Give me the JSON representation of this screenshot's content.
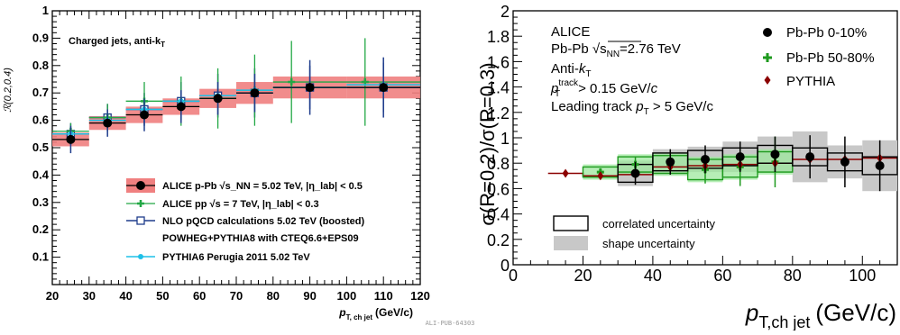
{
  "footer_id": "ALI-PUB-64303",
  "chart_data": [
    {
      "type": "scatter",
      "title": "",
      "annotation": "Charged jets, anti-k",
      "annotation_sub": "T",
      "ylabel": "ℛ(0.2,0.4)",
      "xlabel_main": "p",
      "xlabel_sub": "T, ch jet",
      "xlabel_unit": "(GeV/c)",
      "xlim": [
        20,
        120
      ],
      "ylim": [
        0,
        1
      ],
      "xticks": [
        20,
        30,
        40,
        50,
        60,
        70,
        80,
        90,
        100,
        110,
        120
      ],
      "yticks": [
        0.1,
        0.2,
        0.3,
        0.4,
        0.5,
        0.6,
        0.7,
        0.8,
        0.9,
        1
      ],
      "legend_position": "lower-right",
      "series": [
        {
          "name": "ALICE p-Pb √s_NN = 5.02 TeV, |η_lab| < 0.5",
          "color": "#000000",
          "band_color": "#f08080",
          "x": [
            25,
            35,
            45,
            55,
            65,
            75,
            90,
            110
          ],
          "xerr": [
            5,
            5,
            5,
            5,
            5,
            5,
            10,
            10
          ],
          "y": [
            0.53,
            0.59,
            0.62,
            0.65,
            0.68,
            0.7,
            0.72,
            0.72
          ],
          "stat_err": [
            0.05,
            0.05,
            0.06,
            0.06,
            0.06,
            0.07,
            0.08,
            0.09
          ],
          "sys_err": [
            0.025,
            0.025,
            0.03,
            0.03,
            0.035,
            0.04,
            0.04,
            0.04
          ]
        },
        {
          "name": "ALICE pp √s = 7 TeV, |η_lab| < 0.3",
          "color": "#22a845",
          "x": [
            25,
            35,
            45,
            55,
            65,
            75,
            85,
            105
          ],
          "xerr": [
            5,
            5,
            5,
            5,
            5,
            5,
            5,
            15
          ],
          "y": [
            0.56,
            0.61,
            0.67,
            0.67,
            0.68,
            0.71,
            0.74,
            0.74
          ],
          "yerr": [
            0.03,
            0.05,
            0.07,
            0.09,
            0.11,
            0.13,
            0.15,
            0.16
          ]
        },
        {
          "name": "NLO pQCD calculations 5.02 TeV (boosted)",
          "name_line2": "POWHEG+PYTHIA8 with CTEQ6.6+EPS09",
          "color": "#1f3d8c",
          "x": [
            25,
            35,
            45,
            55,
            65,
            75,
            90,
            110
          ],
          "xerr": [
            5,
            5,
            5,
            5,
            5,
            5,
            10,
            10
          ],
          "y": [
            0.55,
            0.61,
            0.64,
            0.67,
            0.69,
            0.7,
            0.72,
            0.72
          ],
          "yerr": [
            0.04,
            0.05,
            0.06,
            0.07,
            0.08,
            0.09,
            0.1,
            0.11
          ]
        },
        {
          "name": "PYTHIA6 Perugia 2011 5.02 TeV",
          "color": "#1ec0e8",
          "x": [
            25,
            35,
            45,
            55,
            65,
            75,
            90,
            110
          ],
          "xerr": [
            5,
            5,
            5,
            5,
            5,
            5,
            10,
            10
          ],
          "y": [
            0.55,
            0.6,
            0.64,
            0.67,
            0.69,
            0.71,
            0.72,
            0.73
          ],
          "yerr": [
            0.005,
            0.005,
            0.005,
            0.005,
            0.005,
            0.005,
            0.005,
            0.005
          ]
        }
      ]
    },
    {
      "type": "scatter",
      "title": "",
      "ylabel": "σ(R=0.2)/σ(R=0.3)",
      "xlabel_main": "p",
      "xlabel_sub": "T,ch jet",
      "xlabel_unit": "(GeV/c)",
      "xlim": [
        0,
        110
      ],
      "ylim": [
        0,
        2
      ],
      "xticks": [
        0,
        20,
        40,
        60,
        80,
        100
      ],
      "yticks": [
        0,
        0.2,
        0.4,
        0.6,
        0.8,
        1,
        1.2,
        1.4,
        1.6,
        1.8,
        2
      ],
      "info_lines": [
        "ALICE",
        "Pb-Pb √s_NN=2.76 TeV",
        "Anti-k_T",
        "p_T^track > 0.15 GeV/c",
        "Leading track p_T > 5 GeV/c"
      ],
      "legend_position": "top-right",
      "unc_legend": [
        "correlated uncertainty",
        "shape uncertainty"
      ],
      "series": [
        {
          "name": "Pb-Pb 0-10%",
          "color": "#000000",
          "x": [
            35,
            45,
            55,
            65,
            75,
            85,
            95,
            105
          ],
          "y": [
            0.72,
            0.81,
            0.83,
            0.85,
            0.87,
            0.85,
            0.81,
            0.78
          ],
          "stat_err": [
            0.09,
            0.1,
            0.11,
            0.12,
            0.14,
            0.17,
            0.2,
            0.2
          ],
          "corr_err": [
            0.07,
            0.07,
            0.07,
            0.07,
            0.07,
            0.07,
            0.07,
            0.07
          ],
          "shape_err": [
            0.1,
            0.1,
            0.1,
            0.12,
            0.14,
            0.2,
            0.13,
            0.2
          ]
        },
        {
          "name": "Pb-Pb 50-80%",
          "color": "#1e9a1e",
          "x": [
            25,
            35,
            45,
            55,
            65,
            75
          ],
          "y": [
            0.73,
            0.79,
            0.79,
            0.75,
            0.77,
            0.81
          ],
          "stat_err": [
            0.03,
            0.06,
            0.08,
            0.11,
            0.15,
            0.2
          ],
          "corr_err": [
            0.04,
            0.06,
            0.07,
            0.08,
            0.08,
            0.08
          ],
          "shape_err": [
            0.06,
            0.08,
            0.09,
            0.1,
            0.1,
            0.1
          ]
        },
        {
          "name": "PYTHIA",
          "color": "#8b0000",
          "x": [
            15,
            25,
            35,
            45,
            55,
            65,
            75,
            85,
            95,
            105
          ],
          "y": [
            0.72,
            0.7,
            0.71,
            0.77,
            0.78,
            0.79,
            0.8,
            0.83,
            0.83,
            0.84
          ],
          "stat_err": [
            0.005,
            0.005,
            0.005,
            0.005,
            0.005,
            0.005,
            0.005,
            0.005,
            0.005,
            0.005
          ]
        }
      ]
    }
  ]
}
